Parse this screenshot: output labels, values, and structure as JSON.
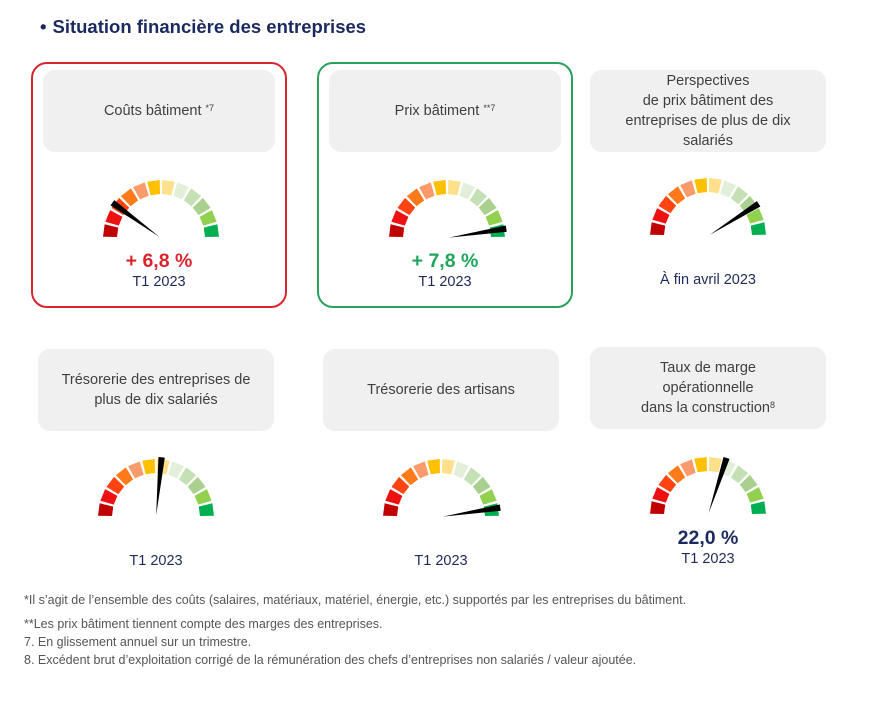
{
  "header": {
    "bullet": "•",
    "title": "Situation financière des entreprises"
  },
  "gauge_colors": [
    "#c00000",
    "#ee1111",
    "#ff4411",
    "#ff7a1a",
    "#fb9a6b",
    "#ffc000",
    "#ffe08a",
    "#e2f0d9",
    "#c5e0b4",
    "#a9d08e",
    "#92d050",
    "#00b050"
  ],
  "needle_color": "#000000",
  "indicators": [
    {
      "title": "Coûts bâtiment ",
      "sup": "*7",
      "value": "+ 6,8 %",
      "value_color": "#d9262e",
      "period": "T1 2023",
      "needle": 0.2,
      "frame": "red"
    },
    {
      "title": "Prix bâtiment ",
      "sup": "**7",
      "value": "+ 7,8 %",
      "value_color": "#1fa55a",
      "period": "T1 2023",
      "needle": 0.95,
      "frame": "green"
    },
    {
      "title_lines": [
        "Perspectives",
        "de prix bâtiment des",
        "entreprises de plus de dix",
        "salariés"
      ],
      "value": "",
      "period": "À fin avril 2023",
      "needle": 0.82,
      "frame": "none"
    },
    {
      "title_lines": [
        "Trésorerie des entreprises de",
        "plus de dix salariés"
      ],
      "value": "",
      "period": "T1 2023",
      "needle": 0.53,
      "frame": "none"
    },
    {
      "title": "Trésorerie des artisans",
      "value": "",
      "period": "T1 2023",
      "needle": 0.95,
      "frame": "none"
    },
    {
      "title_lines": [
        "Taux de marge",
        "opérationnelle",
        "dans la construction"
      ],
      "sup": "8",
      "value": "22,0 %",
      "value_color": "#1b2a5e",
      "period": "T1 2023",
      "needle": 0.6,
      "frame": "none"
    }
  ],
  "footnotes": [
    "*Il s’agit de l’ensemble des coûts (salaires, matériaux, matériel, énergie, etc.) supportés par les entreprises du bâtiment.",
    "**Les prix bâtiment tiennent compte des marges des entreprises.",
    "7. En glissement annuel sur un trimestre.",
    "8. Excédent brut d’exploitation corrigé de la rémunération des chefs d’entreprises non salariés / valeur ajoutée."
  ]
}
